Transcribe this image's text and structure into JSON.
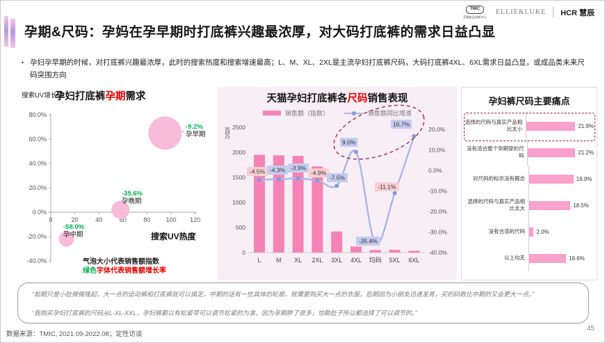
{
  "slide": {
    "title": "孕期&尺码：孕妈在孕早期时打底裤兴趣最浓厚，对大码打底裤的需求日益凸显",
    "bullet_marker": "•",
    "bullet": "孕妇孕早期的时候，对打底裤兴趣最浓厚，此时的搜索热度和搜索增速最高；L、M、XL、2XL是主流孕妇打底裤尺码，大码打底裤4XL、6XL需求日益凸显，或成品类未来尺码突围方向",
    "source": "数据来源：TMIC, 2021.09-2022.08；定性访谈",
    "page_number": "45"
  },
  "logos": {
    "tmic_label": "TMIC",
    "tmic_sub": "天猫新品创新中心",
    "brand": "ELLIE&LUKE",
    "hcr": "HCR 慧辰"
  },
  "quotes": [
    "“前期只是小肚微微隆起，大一点的运动裤和打底裤就可以搞定，中期的话有一些具体的轮廓，就需要购买大一点的衣服，后期因为小朋友迅速发育，买的码数比中期的又会更大一点。”",
    "“我购买孕妇打底裤的尺码从L-XL-XXL，孕妇裤都以有松紧带可以调节松紧的为准，因为孕期胖了很多，怕勒肚子所以都选择了可以调节的。”"
  ],
  "colors": {
    "red": "#e60000",
    "green": "#00b050",
    "maroon": "#8b2144",
    "bubble": "#f8bcd8",
    "bar": "#f583b5",
    "line": "#aeb6e8",
    "lineDot": "#8a96de",
    "labelPink": "#f8d0d2",
    "labelLav": "#c5ccf0",
    "hbar": "#f9a2cc",
    "panelBg": "#f8eef5",
    "axis": "#aaaaaa",
    "tickText": "#555555"
  },
  "chart_data": [
    {
      "type": "scatter",
      "title_prefix": "孕妇打底裤",
      "title_red": "孕期",
      "title_suffix": "需求",
      "ylabel": "搜索UV增长率",
      "xlabel": "搜索UV热度",
      "xlim": [
        0,
        120
      ],
      "ylim": [
        -40,
        80
      ],
      "x_tick_values": [
        0,
        20,
        40,
        60,
        80,
        100,
        120
      ],
      "x_ticks": [
        "0",
        "20",
        "40",
        "60",
        "80",
        "100",
        "120"
      ],
      "y_tick_values": [
        80,
        60,
        40,
        20,
        0,
        -20,
        -40
      ],
      "y_ticks": [
        "80.0%",
        "60.0%",
        "40.0%",
        "20.0%",
        "0.0%",
        "-20.0%",
        "-40.0%"
      ],
      "points": [
        {
          "name": "孕早期",
          "x": 95,
          "y": 65,
          "r": 24,
          "growth": "-9.2%"
        },
        {
          "name": "孕晚期",
          "x": 58,
          "y": 2,
          "r": 13,
          "growth": "-35.6%"
        },
        {
          "name": "孕中期",
          "x": 13,
          "y": -22,
          "r": 11,
          "growth": "-58.0%"
        }
      ],
      "note_size": "气泡大小代表销售额指数",
      "note_color_green": "绿色",
      "note_color_rest": "字体代表销售额增长率"
    },
    {
      "type": "bar+line",
      "title_prefix": "天猫孕妇打底裤各",
      "title_red": "尺码",
      "title_suffix": "销售表现",
      "legend": [
        "销售额（指数）",
        "销售额同比增速"
      ],
      "unit_left": "百万",
      "categories": [
        "L",
        "M",
        "XL",
        "2XL",
        "3XL",
        "4XL",
        "均码",
        "5XL",
        "6XL"
      ],
      "bar_values": [
        1950,
        1940,
        1930,
        1720,
        420,
        120,
        50,
        55,
        35
      ],
      "line_values": [
        -4.5,
        -4.3,
        -3.9,
        -4.9,
        -7.5,
        9.0,
        -35.4,
        -11.1,
        16.7
      ],
      "line_labels": [
        "-4.5%",
        "-4.3%",
        "-3.9%",
        "-4.9%",
        "-7.5%",
        "9.0%",
        "-35.4%",
        "-11.1%",
        "16.7%"
      ],
      "label_bg": [
        "pink",
        "lav",
        "lav",
        "pink",
        "lav",
        "lav",
        "lav",
        "pink",
        "lav"
      ],
      "left_ticks": [
        0,
        500,
        1000,
        1500,
        2000,
        2500
      ],
      "left_range": [
        0,
        2500
      ],
      "right_ticks": [
        "20.0%",
        "10.0%",
        "0.0%",
        "-10.0%",
        "-20.0%",
        "-30.0%",
        "-40.0%"
      ],
      "right_tick_values": [
        20,
        10,
        0,
        -10,
        -20,
        -30,
        -40
      ],
      "right_range": [
        -40,
        21
      ],
      "annotation": "dashed-ellipse around 4XL 9.0% and 6XL 16.7%"
    },
    {
      "type": "bar-horizontal",
      "title": "孕妇裤尺码主要痛点",
      "categories": [
        "选择的尺码与真实产品相比太小",
        "没有适合整个孕期穿的尺码",
        "对尺码的标示没有概念",
        "选择的尺码与真实产品相比太大",
        "没有合适的尺码",
        "以上均无"
      ],
      "values": [
        21.9,
        21.2,
        19.9,
        18.5,
        2.0,
        16.6
      ],
      "labels": [
        "21.9%",
        "21.2%",
        "19.9%",
        "18.5%",
        "2.0%",
        "16.6%"
      ],
      "highlight_index": 0
    }
  ]
}
